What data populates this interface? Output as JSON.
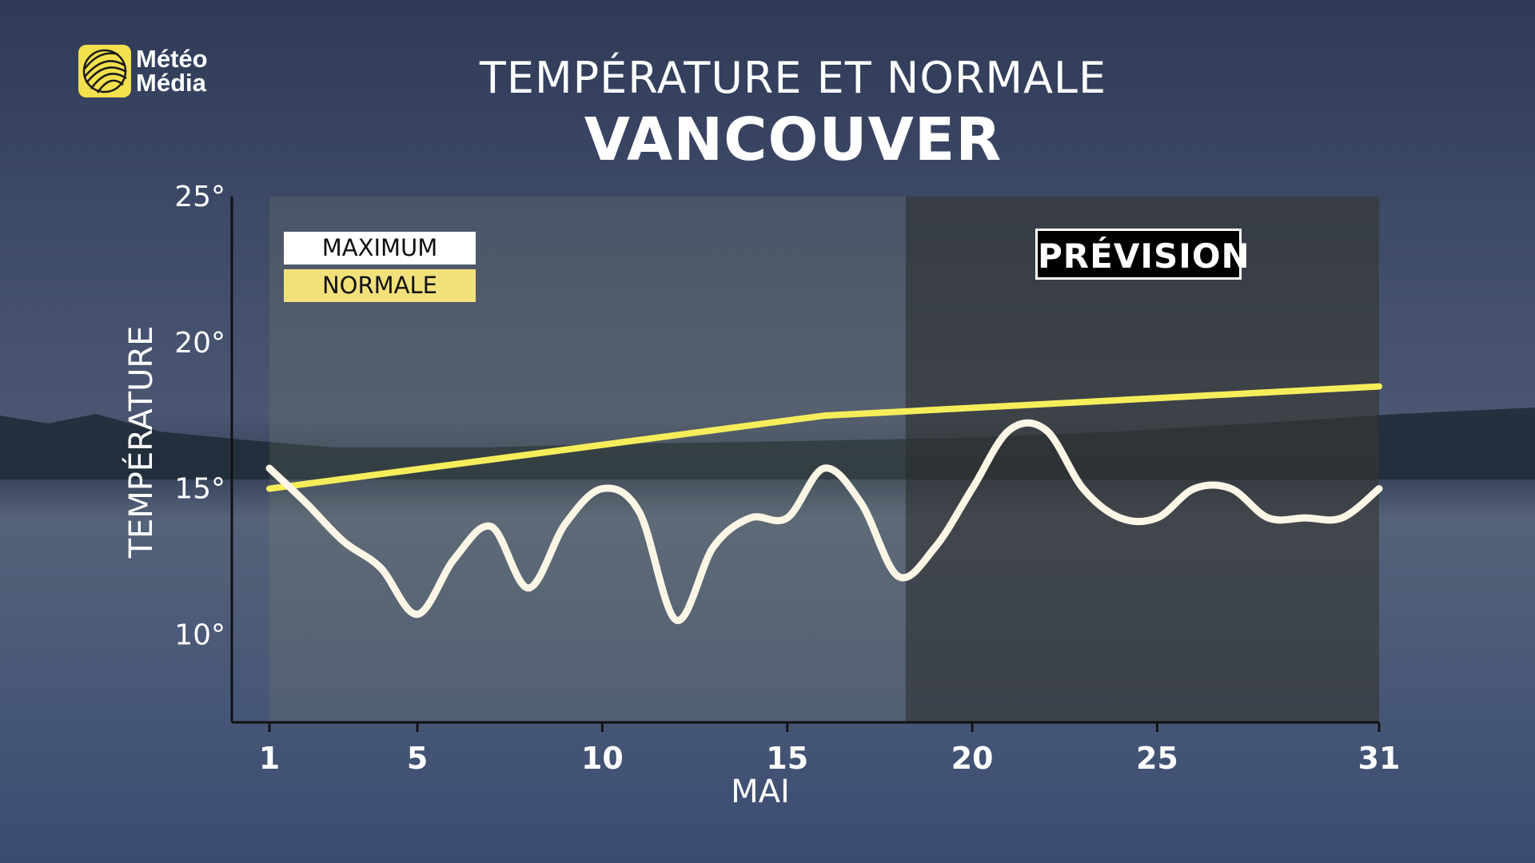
{
  "brand": {
    "line1": "Météo",
    "line2": "Média",
    "color": "#f2e04c"
  },
  "header": {
    "title": "TEMPÉRATURE ET NORMALE",
    "subtitle": "VANCOUVER"
  },
  "legend": {
    "maximum": "MAXIMUM",
    "normale": "NORMALE"
  },
  "forecast": {
    "label": "PRÉVISION",
    "start_day": 18.2,
    "end_day": 31
  },
  "colors": {
    "maximum": "#fbf6e6",
    "normale": "#f5ee5a",
    "forecast_shade": "#2a2a2a"
  },
  "chart_data": {
    "type": "line",
    "title": "TEMPÉRATURE ET NORMALE",
    "subtitle": "VANCOUVER",
    "xlabel": "MAI",
    "ylabel": "TEMPÉRATURE",
    "xlim": [
      1,
      31
    ],
    "ylim": [
      7,
      25
    ],
    "x_ticks": [
      1,
      5,
      10,
      15,
      20,
      25,
      31
    ],
    "y_ticks": [
      10,
      15,
      20,
      25
    ],
    "y_tick_labels": [
      "10°",
      "15°",
      "20°",
      "25°"
    ],
    "series": [
      {
        "name": "MAXIMUM",
        "x": [
          1,
          2,
          3,
          4,
          5,
          6,
          7,
          8,
          9,
          10,
          11,
          12,
          13,
          14,
          15,
          16,
          17,
          18,
          19,
          20,
          21,
          22,
          23,
          24,
          25,
          26,
          27,
          28,
          29,
          30,
          31
        ],
        "values": [
          15.7,
          14.5,
          13.2,
          12.3,
          10.7,
          12.6,
          13.7,
          11.6,
          13.8,
          15.0,
          14.2,
          10.5,
          13.0,
          14.0,
          14.0,
          15.7,
          14.5,
          12.0,
          13.0,
          15.0,
          17.0,
          17.0,
          15.0,
          14.0,
          14.0,
          15.0,
          15.0,
          14.0,
          14.0,
          14.0,
          15.0
        ]
      },
      {
        "name": "NORMALE",
        "x": [
          1,
          16,
          31
        ],
        "values": [
          15.0,
          17.5,
          18.5
        ]
      }
    ]
  }
}
